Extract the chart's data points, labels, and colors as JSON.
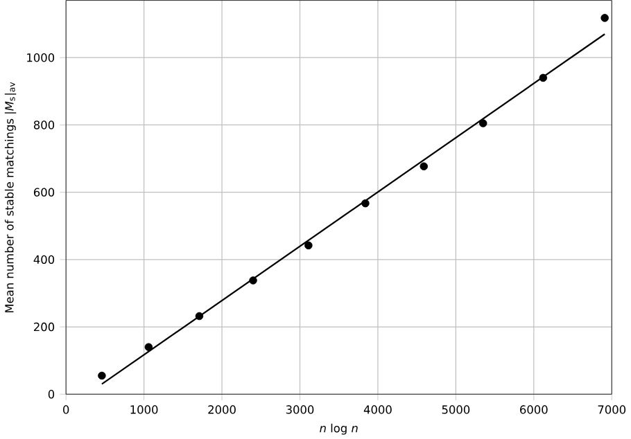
{
  "chart_data": {
    "type": "scatter",
    "xlabel": "*n* log *n*",
    "ylabel": "Mean number of stable matchings |*M*$_{s}$|$_{av}$",
    "series": [
      {
        "color": "#000000",
        "marker": "circle",
        "x": [
          460,
          1060,
          1710,
          2400,
          3110,
          3840,
          4590,
          5350,
          6120,
          6910
        ],
        "values": [
          55,
          140,
          232,
          338,
          442,
          567,
          677,
          805,
          940,
          1118
        ]
      },
      {
        "type": "line",
        "color": "#000000",
        "x": [
          460,
          6910
        ],
        "values": [
          30,
          1070
        ]
      }
    ],
    "xlim": [
      0,
      7000
    ],
    "ylim": [
      0,
      1170
    ],
    "xticks": [
      0,
      1000,
      2000,
      3000,
      4000,
      5000,
      6000,
      7000
    ],
    "yticks": [
      0,
      200,
      400,
      600,
      800,
      1000
    ],
    "grid": true
  }
}
